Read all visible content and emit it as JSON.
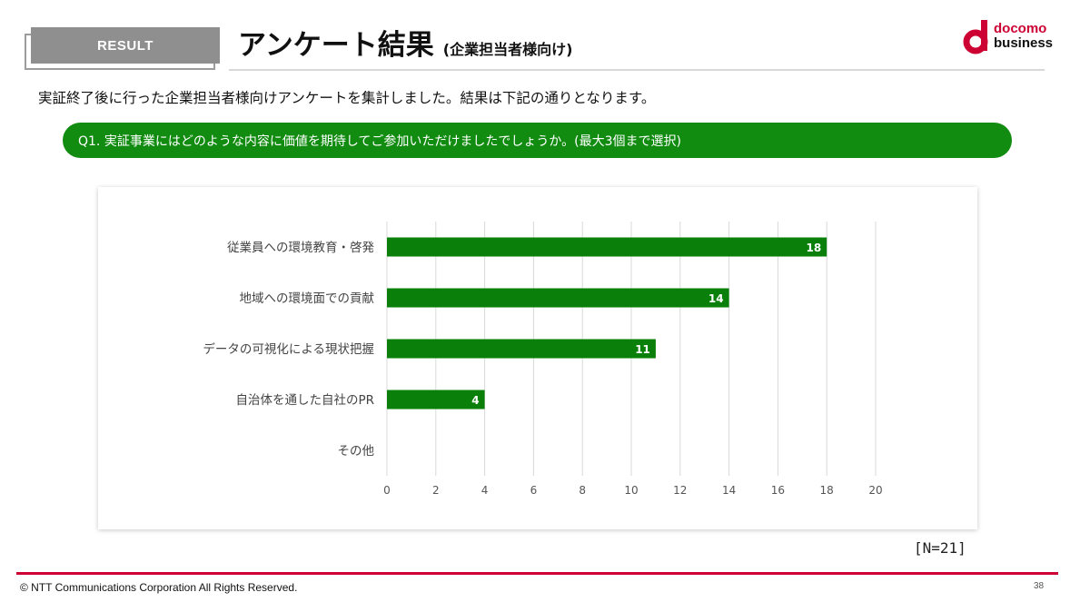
{
  "header": {
    "tab_label": "RESULT",
    "title": "アンケート結果",
    "subtitle": "(企業担当者様向け)",
    "logo_line1": "docomo",
    "logo_line2": "business"
  },
  "description": "実証終了後に行った企業担当者様向けアンケートを集計しました。結果は下記の通りとなります。",
  "question": "Q1. 実証事業にはどのような内容に価値を期待してご参加いただけましたでしょうか。(最大3個まで選択)",
  "sample_size": "[N=21]",
  "footer": {
    "copyright": "© NTT Communications Corporation All Rights Reserved.",
    "page_number": "38"
  },
  "colors": {
    "accent_green": "#118c11",
    "bar_green": "#0a800a",
    "brand_red": "#cc0033"
  },
  "chart_data": {
    "type": "bar",
    "orientation": "horizontal",
    "categories": [
      "従業員への環境教育・啓発",
      "地域への環境面での貢献",
      "データの可視化による現状把握",
      "自治体を通した自社のPR",
      "その他"
    ],
    "values": [
      18,
      14,
      11,
      4,
      0
    ],
    "data_labels": [
      "18",
      "14",
      "11",
      "4",
      ""
    ],
    "xlim": [
      0,
      20
    ],
    "xticks": [
      0,
      2,
      4,
      6,
      8,
      10,
      12,
      14,
      16,
      18,
      20
    ],
    "grid": true,
    "legend": "none",
    "title": "",
    "xlabel": "",
    "ylabel": ""
  }
}
